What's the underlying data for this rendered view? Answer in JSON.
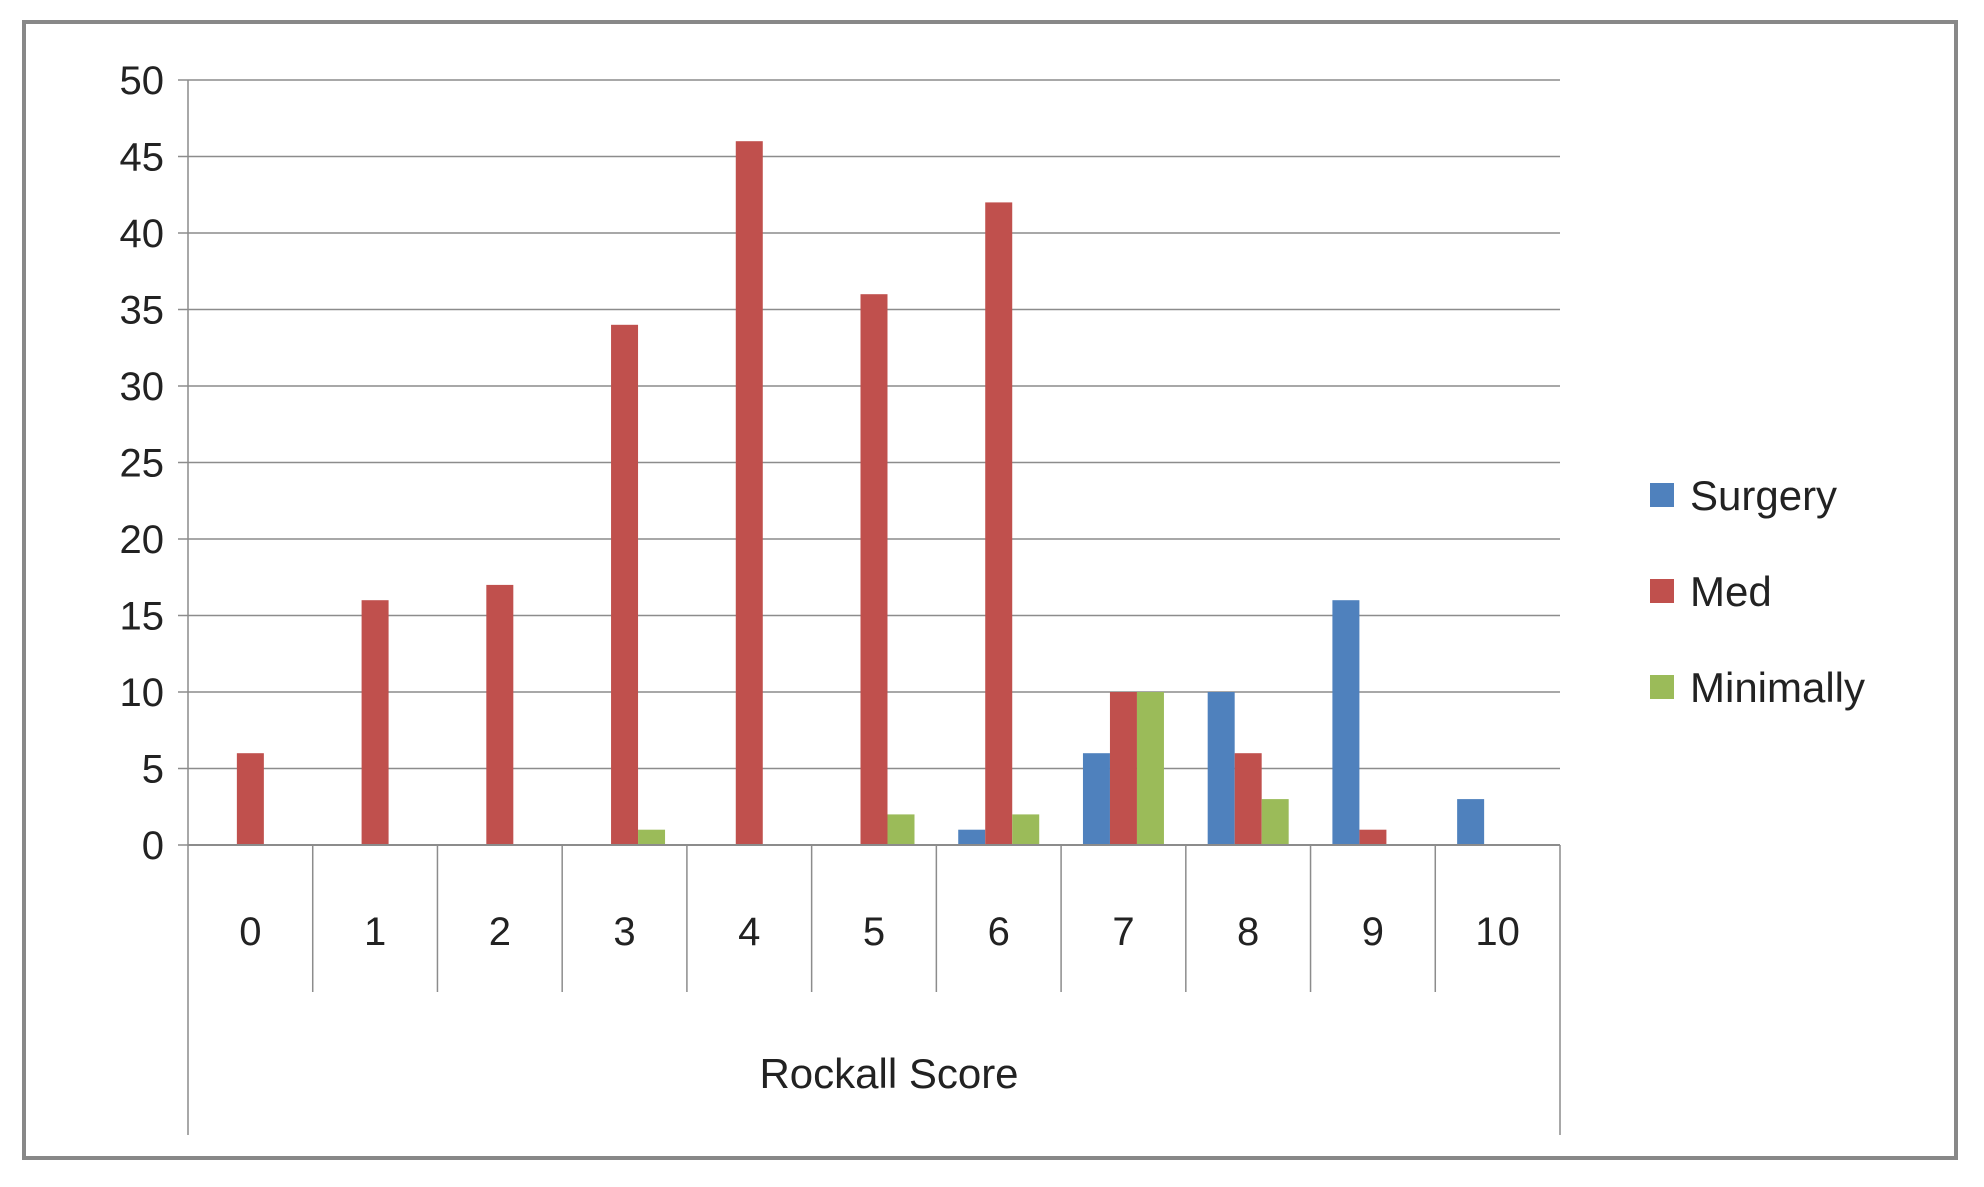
{
  "chart_data": {
    "type": "bar",
    "title": "",
    "xlabel": "Rockall Score",
    "ylabel": "",
    "ylim": [
      0,
      50
    ],
    "yticks": [
      0,
      5,
      10,
      15,
      20,
      25,
      30,
      35,
      40,
      45,
      50
    ],
    "grid": true,
    "legend_position": "right",
    "categories": [
      "0",
      "1",
      "2",
      "3",
      "4",
      "5",
      "6",
      "7",
      "8",
      "9",
      "10"
    ],
    "series": [
      {
        "name": "Surgery",
        "color": "#4F81BD",
        "values": [
          0,
          0,
          0,
          0,
          0,
          0,
          1,
          6,
          10,
          16,
          3
        ]
      },
      {
        "name": "Med",
        "color": "#C0504D",
        "values": [
          6,
          16,
          17,
          34,
          46,
          36,
          42,
          10,
          6,
          1,
          0
        ]
      },
      {
        "name": "Minimally",
        "color": "#9BBB59",
        "values": [
          0,
          0,
          0,
          1,
          0,
          2,
          2,
          10,
          3,
          0,
          0
        ]
      }
    ]
  }
}
